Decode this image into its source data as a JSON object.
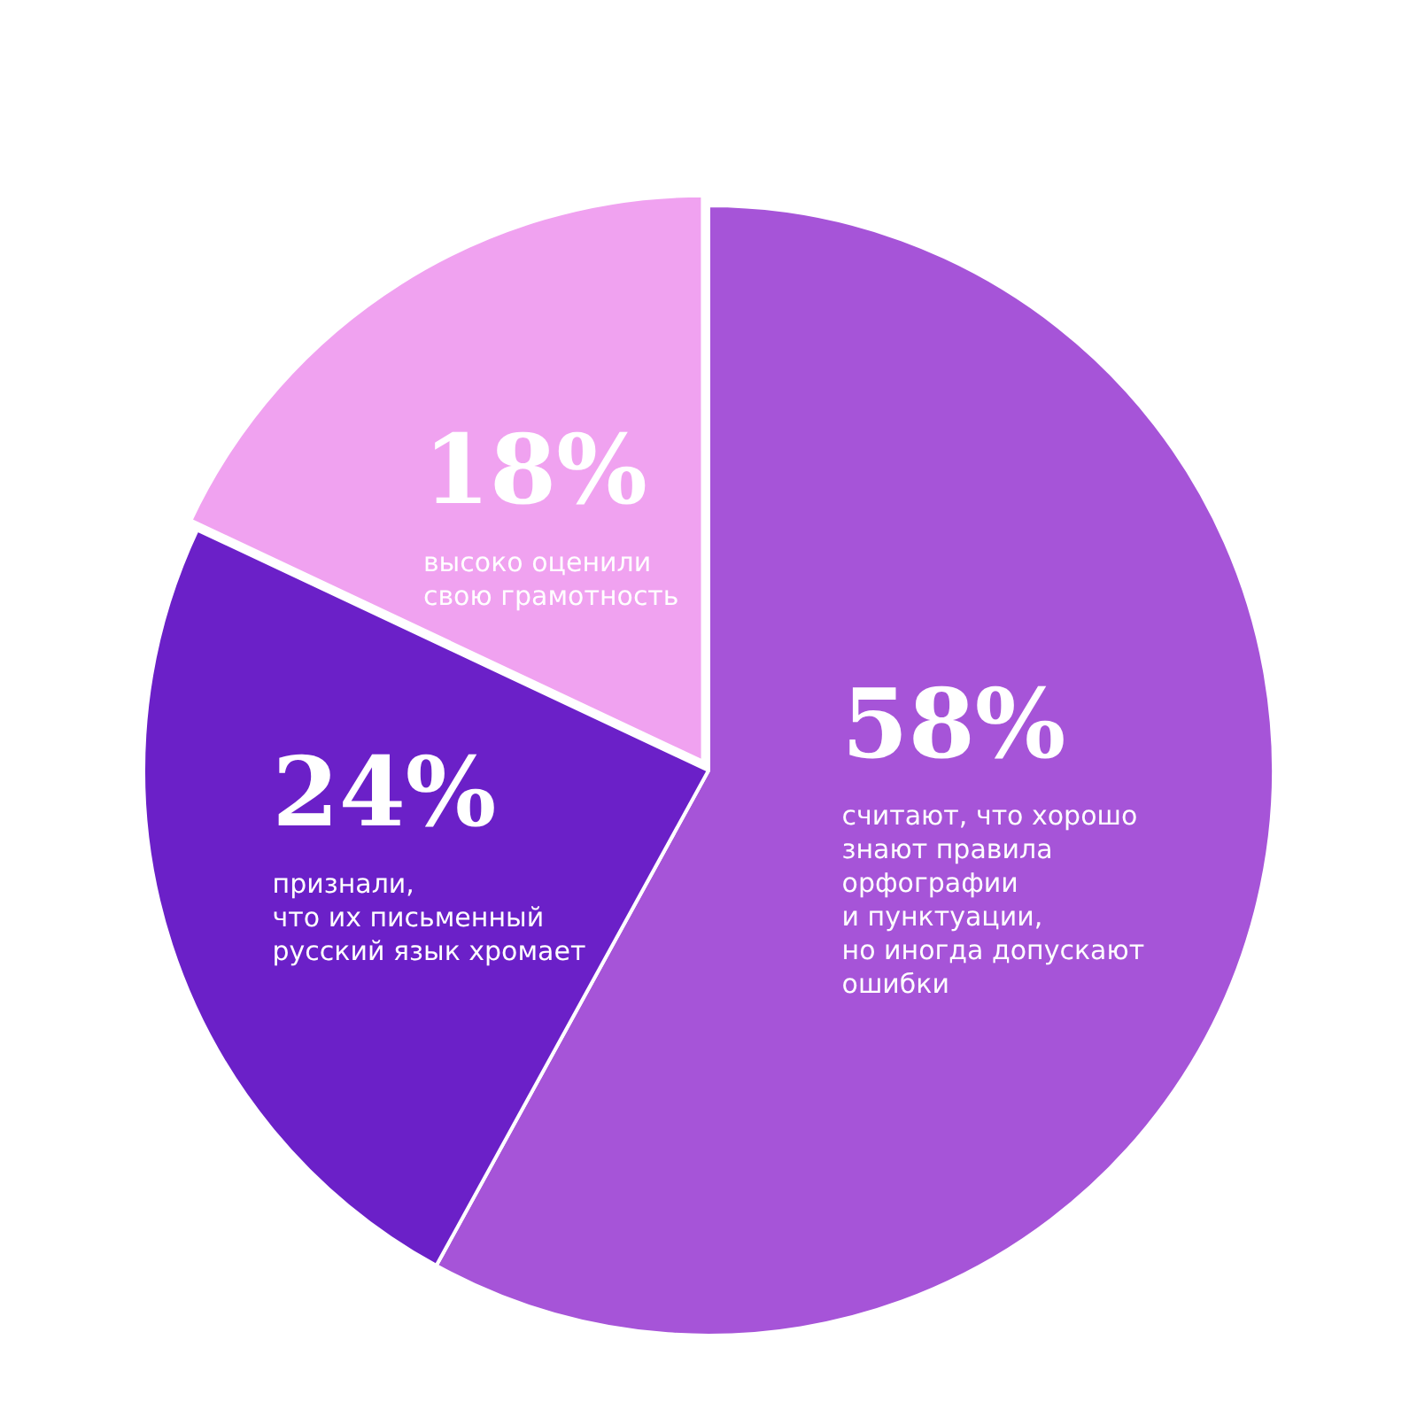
{
  "chart_data": {
    "type": "pie",
    "categories": [
      "считают, что хорошо\nзнают правила\nорфографии\nи пунктуации,\nно иногда допускают\nошибки",
      "признали,\nчто их письменный\nрусский язык хромает",
      "высоко оценили\nсвою грамотность"
    ],
    "values": [
      58,
      24,
      18
    ],
    "value_labels": [
      "58%",
      "24%",
      "18%"
    ],
    "colors": [
      "#a654d8",
      "#6b20c8",
      "#f0a2f0"
    ],
    "legend": false
  }
}
